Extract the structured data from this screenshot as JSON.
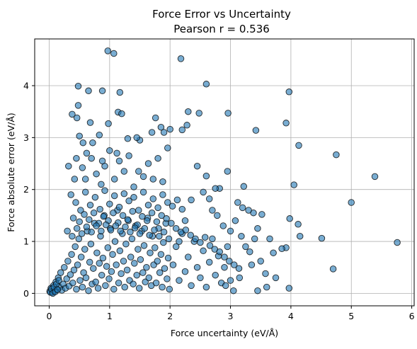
{
  "chart_data": {
    "type": "scatter",
    "title": "Force Error vs Uncertainty",
    "subtitle": "Pearson r = 0.536",
    "xlabel": "Force uncertainty (eV/Å)",
    "ylabel": "Force absolute error (eV/Å)",
    "xlim": [
      -0.24,
      6.04
    ],
    "ylim": [
      -0.24,
      4.9
    ],
    "xticks": [
      "0",
      "1",
      "2",
      "3",
      "4",
      "5",
      "6"
    ],
    "yticks": [
      "0",
      "1",
      "2",
      "3",
      "4"
    ],
    "grid": true,
    "marker_color": "#1f77b4",
    "marker_edge": "#000000",
    "marker_alpha": 0.6,
    "cluster_points": [
      [
        0.01,
        0.04
      ],
      [
        0.03,
        0.1
      ],
      [
        0.05,
        0.02
      ],
      [
        0.07,
        0.15
      ],
      [
        0.09,
        0.05
      ],
      [
        0.11,
        0.22
      ],
      [
        0.13,
        0.08
      ],
      [
        0.15,
        0.3
      ],
      [
        0.17,
        0.12
      ],
      [
        0.19,
        0.4
      ],
      [
        0.21,
        0.06
      ],
      [
        0.23,
        0.18
      ],
      [
        0.25,
        0.5
      ],
      [
        0.27,
        0.1
      ],
      [
        0.29,
        0.28
      ],
      [
        0.31,
        0.62
      ],
      [
        0.33,
        0.14
      ],
      [
        0.35,
        0.36
      ],
      [
        0.37,
        0.75
      ],
      [
        0.39,
        0.2
      ],
      [
        0.41,
        0.45
      ],
      [
        0.43,
        0.9
      ],
      [
        0.45,
        0.08
      ],
      [
        0.47,
        0.55
      ],
      [
        0.49,
        1.05
      ],
      [
        0.51,
        0.25
      ],
      [
        0.53,
        0.7
      ],
      [
        0.55,
        0.12
      ],
      [
        0.57,
        0.4
      ],
      [
        0.59,
        0.85
      ],
      [
        0.61,
        0.3
      ],
      [
        0.63,
        1.2
      ],
      [
        0.65,
        0.05
      ],
      [
        0.67,
        0.6
      ],
      [
        0.69,
        0.95
      ],
      [
        0.71,
        0.18
      ],
      [
        0.73,
        0.48
      ],
      [
        0.75,
        1.35
      ],
      [
        0.77,
        0.22
      ],
      [
        0.79,
        0.78
      ],
      [
        0.81,
        0.1
      ],
      [
        0.83,
        0.58
      ],
      [
        0.85,
        1.1
      ],
      [
        0.87,
        0.35
      ],
      [
        0.89,
        0.68
      ],
      [
        0.91,
        1.5
      ],
      [
        0.93,
        0.15
      ],
      [
        0.95,
        0.52
      ],
      [
        0.97,
        0.88
      ],
      [
        0.99,
        0.28
      ],
      [
        1.01,
        1.25
      ],
      [
        1.03,
        0.42
      ],
      [
        1.05,
        0.75
      ],
      [
        1.07,
        0.08
      ],
      [
        1.09,
        1.0
      ],
      [
        1.11,
        0.55
      ],
      [
        1.13,
        1.6
      ],
      [
        1.15,
        0.2
      ],
      [
        1.17,
        0.82
      ],
      [
        1.19,
        0.38
      ],
      [
        1.21,
        1.15
      ],
      [
        1.23,
        0.62
      ],
      [
        1.25,
        0.12
      ],
      [
        1.27,
        0.95
      ],
      [
        1.29,
        0.45
      ],
      [
        1.31,
        1.4
      ],
      [
        1.33,
        0.25
      ],
      [
        1.35,
        0.7
      ],
      [
        1.37,
        1.05
      ],
      [
        1.39,
        0.18
      ],
      [
        1.41,
        0.58
      ],
      [
        1.43,
        1.3
      ],
      [
        1.45,
        0.35
      ],
      [
        1.47,
        0.85
      ],
      [
        1.49,
        0.1
      ],
      [
        1.51,
        0.65
      ],
      [
        1.53,
        1.2
      ],
      [
        1.55,
        0.4
      ],
      [
        1.57,
        0.92
      ],
      [
        1.59,
        0.22
      ],
      [
        1.61,
        0.5
      ],
      [
        1.63,
        1.45
      ],
      [
        1.65,
        0.3
      ],
      [
        1.67,
        0.78
      ],
      [
        1.69,
        0.15
      ],
      [
        1.71,
        1.1
      ],
      [
        1.73,
        0.55
      ],
      [
        1.75,
        0.88
      ],
      [
        1.77,
        0.2
      ],
      [
        1.79,
        0.62
      ],
      [
        1.81,
        1.25
      ],
      [
        1.83,
        0.4
      ],
      [
        1.85,
        0.75
      ],
      [
        1.87,
        0.12
      ],
      [
        1.89,
        0.98
      ],
      [
        1.91,
        0.48
      ],
      [
        1.93,
        1.35
      ],
      [
        1.95,
        0.28
      ],
      [
        1.97,
        0.68
      ],
      [
        1.99,
        0.08
      ],
      [
        2.05,
        0.55
      ],
      [
        2.1,
        0.9
      ],
      [
        2.15,
        0.25
      ],
      [
        2.2,
        1.15
      ],
      [
        2.25,
        0.42
      ],
      [
        2.3,
        0.7
      ],
      [
        2.35,
        0.15
      ],
      [
        2.4,
        1.0
      ],
      [
        2.45,
        0.5
      ],
      [
        2.5,
        0.3
      ],
      [
        2.55,
        0.82
      ],
      [
        2.6,
        0.12
      ],
      [
        2.65,
        0.6
      ],
      [
        2.7,
        1.05
      ],
      [
        2.75,
        0.35
      ],
      [
        2.8,
        0.72
      ],
      [
        2.85,
        0.2
      ],
      [
        2.9,
        0.5
      ],
      [
        2.95,
        0.9
      ],
      [
        3.0,
        0.25
      ]
    ],
    "points": [
      [
        0.97,
        4.67
      ],
      [
        1.07,
        4.62
      ],
      [
        2.18,
        4.52
      ],
      [
        2.6,
        4.03
      ],
      [
        0.48,
        3.99
      ],
      [
        3.97,
        3.88
      ],
      [
        0.65,
        3.9
      ],
      [
        0.88,
        3.9
      ],
      [
        1.17,
        3.87
      ],
      [
        0.48,
        3.62
      ],
      [
        0.38,
        3.45
      ],
      [
        0.46,
        3.38
      ],
      [
        1.14,
        3.49
      ],
      [
        1.2,
        3.46
      ],
      [
        2.3,
        3.5
      ],
      [
        2.48,
        3.47
      ],
      [
        2.96,
        3.47
      ],
      [
        3.92,
        3.28
      ],
      [
        3.42,
        3.14
      ],
      [
        1.76,
        3.38
      ],
      [
        0.68,
        3.29
      ],
      [
        0.98,
        3.27
      ],
      [
        2.28,
        3.24
      ],
      [
        1.9,
        3.1
      ],
      [
        2.0,
        3.16
      ],
      [
        0.5,
        3.03
      ],
      [
        1.3,
        2.98
      ],
      [
        1.5,
        2.95
      ],
      [
        2.2,
        3.15
      ],
      [
        4.13,
        2.85
      ],
      [
        4.75,
        2.67
      ],
      [
        5.39,
        2.25
      ],
      [
        4.05,
        2.09
      ],
      [
        5.0,
        1.75
      ],
      [
        5.76,
        0.98
      ],
      [
        4.7,
        0.47
      ],
      [
        4.51,
        1.06
      ],
      [
        4.12,
        1.33
      ],
      [
        4.15,
        1.1
      ],
      [
        3.98,
        1.44
      ],
      [
        3.92,
        0.88
      ],
      [
        3.97,
        0.1
      ],
      [
        3.71,
        0.78
      ],
      [
        3.58,
        0.38
      ],
      [
        3.5,
        0.62
      ],
      [
        3.45,
        0.05
      ],
      [
        3.6,
        0.12
      ],
      [
        3.75,
        0.3
      ],
      [
        3.85,
        0.86
      ],
      [
        3.65,
        1.05
      ],
      [
        3.52,
        1.52
      ],
      [
        3.45,
        1.25
      ],
      [
        3.38,
        1.55
      ],
      [
        3.3,
        1.6
      ],
      [
        3.22,
        2.06
      ],
      [
        3.2,
        1.65
      ],
      [
        3.12,
        1.75
      ],
      [
        3.08,
        1.4
      ],
      [
        3.0,
        1.2
      ],
      [
        2.95,
        2.35
      ],
      [
        2.82,
        2.02
      ],
      [
        2.75,
        2.02
      ],
      [
        2.7,
        1.6
      ],
      [
        2.65,
        1.82
      ],
      [
        2.6,
        2.26
      ],
      [
        2.55,
        1.95
      ],
      [
        2.45,
        2.45
      ],
      [
        2.35,
        1.8
      ],
      [
        2.25,
        1.4
      ],
      [
        2.15,
        1.0
      ],
      [
        3.25,
        0.9
      ],
      [
        3.35,
        0.55
      ],
      [
        3.15,
        0.3
      ],
      [
        3.05,
        0.05
      ],
      [
        2.92,
        0.15
      ],
      [
        3.4,
        1.05
      ],
      [
        3.32,
        0.8
      ],
      [
        3.18,
        1.1
      ],
      [
        2.88,
        1.3
      ],
      [
        2.78,
        1.5
      ],
      [
        0.32,
        2.45
      ],
      [
        0.42,
        2.2
      ],
      [
        0.55,
        2.42
      ],
      [
        0.62,
        2.7
      ],
      [
        0.7,
        2.6
      ],
      [
        0.78,
        2.3
      ],
      [
        0.86,
        2.1
      ],
      [
        0.92,
        2.45
      ],
      [
        1.0,
        2.75
      ],
      [
        1.08,
        2.2
      ],
      [
        1.16,
        2.55
      ],
      [
        1.24,
        2.35
      ],
      [
        1.32,
        2.65
      ],
      [
        1.4,
        2.05
      ],
      [
        1.48,
        2.35
      ],
      [
        1.56,
        2.25
      ],
      [
        1.64,
        2.5
      ],
      [
        1.72,
        2.2
      ],
      [
        1.8,
        2.6
      ],
      [
        1.88,
        2.15
      ],
      [
        1.96,
        2.8
      ],
      [
        0.36,
        1.9
      ],
      [
        0.44,
        1.75
      ],
      [
        0.52,
        1.6
      ],
      [
        0.6,
        1.95
      ],
      [
        0.68,
        1.7
      ],
      [
        0.76,
        1.85
      ],
      [
        0.84,
        1.62
      ],
      [
        0.92,
        1.98
      ],
      [
        1.0,
        1.72
      ],
      [
        1.08,
        1.88
      ],
      [
        1.16,
        1.66
      ],
      [
        1.24,
        1.92
      ],
      [
        1.32,
        1.78
      ],
      [
        1.4,
        1.85
      ],
      [
        1.48,
        1.6
      ],
      [
        1.56,
        1.95
      ],
      [
        1.64,
        1.7
      ],
      [
        1.72,
        1.82
      ],
      [
        1.8,
        1.65
      ],
      [
        1.88,
        1.9
      ],
      [
        1.96,
        1.75
      ],
      [
        2.04,
        1.68
      ],
      [
        2.12,
        1.8
      ],
      [
        2.2,
        1.62
      ],
      [
        0.4,
        1.45
      ],
      [
        0.5,
        1.38
      ],
      [
        0.58,
        1.52
      ],
      [
        0.66,
        1.42
      ],
      [
        0.74,
        1.55
      ],
      [
        0.82,
        1.35
      ],
      [
        0.9,
        1.48
      ],
      [
        0.98,
        1.4
      ],
      [
        1.06,
        1.55
      ],
      [
        1.14,
        1.36
      ],
      [
        1.22,
        1.5
      ],
      [
        1.3,
        1.42
      ],
      [
        1.38,
        1.58
      ],
      [
        1.46,
        1.32
      ],
      [
        1.54,
        1.48
      ],
      [
        1.62,
        1.4
      ],
      [
        1.7,
        1.55
      ],
      [
        1.78,
        1.38
      ],
      [
        1.86,
        1.5
      ],
      [
        1.94,
        1.44
      ],
      [
        2.02,
        1.35
      ],
      [
        2.1,
        1.25
      ],
      [
        2.18,
        1.18
      ],
      [
        2.26,
        1.22
      ],
      [
        2.34,
        1.12
      ],
      [
        2.42,
        1.05
      ],
      [
        2.5,
        0.98
      ],
      [
        2.58,
        1.08
      ],
      [
        2.66,
        0.92
      ],
      [
        2.74,
        0.85
      ],
      [
        2.82,
        0.8
      ],
      [
        2.9,
        0.7
      ],
      [
        2.98,
        0.62
      ],
      [
        3.06,
        0.55
      ],
      [
        3.14,
        0.48
      ],
      [
        0.3,
        1.2
      ],
      [
        0.38,
        1.1
      ],
      [
        0.46,
        1.25
      ],
      [
        0.54,
        1.15
      ],
      [
        0.62,
        1.28
      ],
      [
        0.7,
        1.18
      ],
      [
        0.78,
        1.3
      ],
      [
        0.86,
        1.2
      ],
      [
        0.94,
        1.32
      ],
      [
        1.02,
        1.22
      ],
      [
        1.1,
        1.3
      ],
      [
        1.18,
        1.2
      ],
      [
        1.26,
        1.28
      ],
      [
        1.34,
        1.18
      ],
      [
        1.42,
        1.26
      ],
      [
        1.5,
        1.15
      ],
      [
        1.58,
        1.25
      ],
      [
        1.66,
        1.12
      ],
      [
        1.74,
        1.22
      ],
      [
        1.82,
        1.1
      ],
      [
        1.9,
        1.18
      ],
      [
        1.98,
        1.05
      ],
      [
        0.02,
        0.02
      ],
      [
        0.04,
        0.08
      ],
      [
        0.06,
        0.0
      ],
      [
        0.08,
        0.12
      ],
      [
        0.1,
        0.03
      ],
      [
        0.12,
        0.18
      ],
      [
        0.14,
        0.07
      ],
      [
        0.16,
        0.25
      ],
      [
        0.6,
        2.2
      ],
      [
        0.72,
        2.9
      ],
      [
        0.56,
        2.9
      ],
      [
        0.83,
        3.05
      ],
      [
        1.45,
        3.0
      ],
      [
        1.7,
        3.1
      ],
      [
        1.85,
        3.2
      ],
      [
        0.45,
        2.6
      ],
      [
        0.88,
        2.55
      ],
      [
        1.12,
        2.7
      ]
    ]
  }
}
